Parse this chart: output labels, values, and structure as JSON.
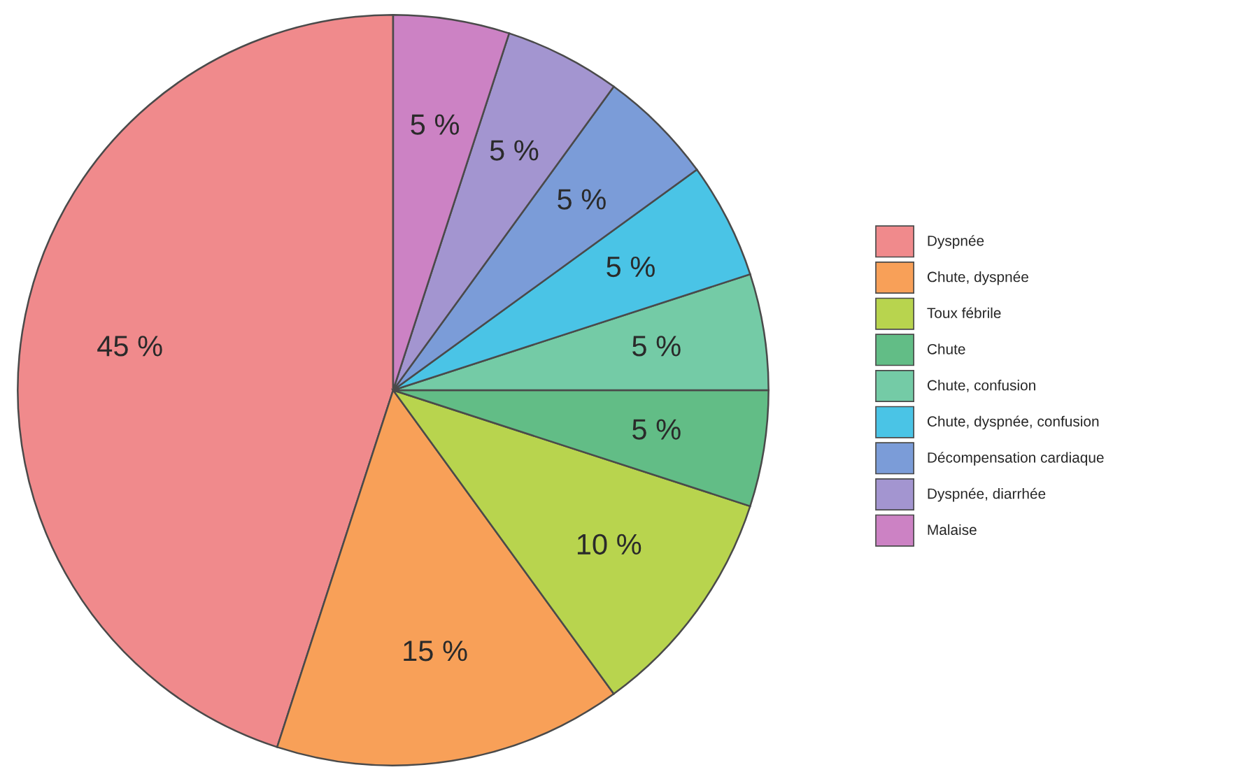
{
  "chart_data": {
    "type": "pie",
    "categories": [
      "Dyspnée",
      "Chute, dyspnée",
      "Toux fébrile",
      "Chute",
      "Chute, confusion",
      "Chute, dyspnée, confusion",
      "Décompensation cardiaque",
      "Dyspnée, diarrhée",
      "Malaise"
    ],
    "values": [
      45,
      15,
      10,
      5,
      5,
      5,
      5,
      5,
      5
    ],
    "colors": [
      "#f08a8c",
      "#f8a058",
      "#b8d44e",
      "#62bd86",
      "#74cba6",
      "#4ac4e6",
      "#7b9cd8",
      "#a395d0",
      "#cc82c4"
    ],
    "value_labels": [
      "45 %",
      "15 %",
      "10 %",
      "5 %",
      "5 %",
      "5 %",
      "5 %",
      "5 %",
      "5 %"
    ],
    "legend": "right"
  }
}
